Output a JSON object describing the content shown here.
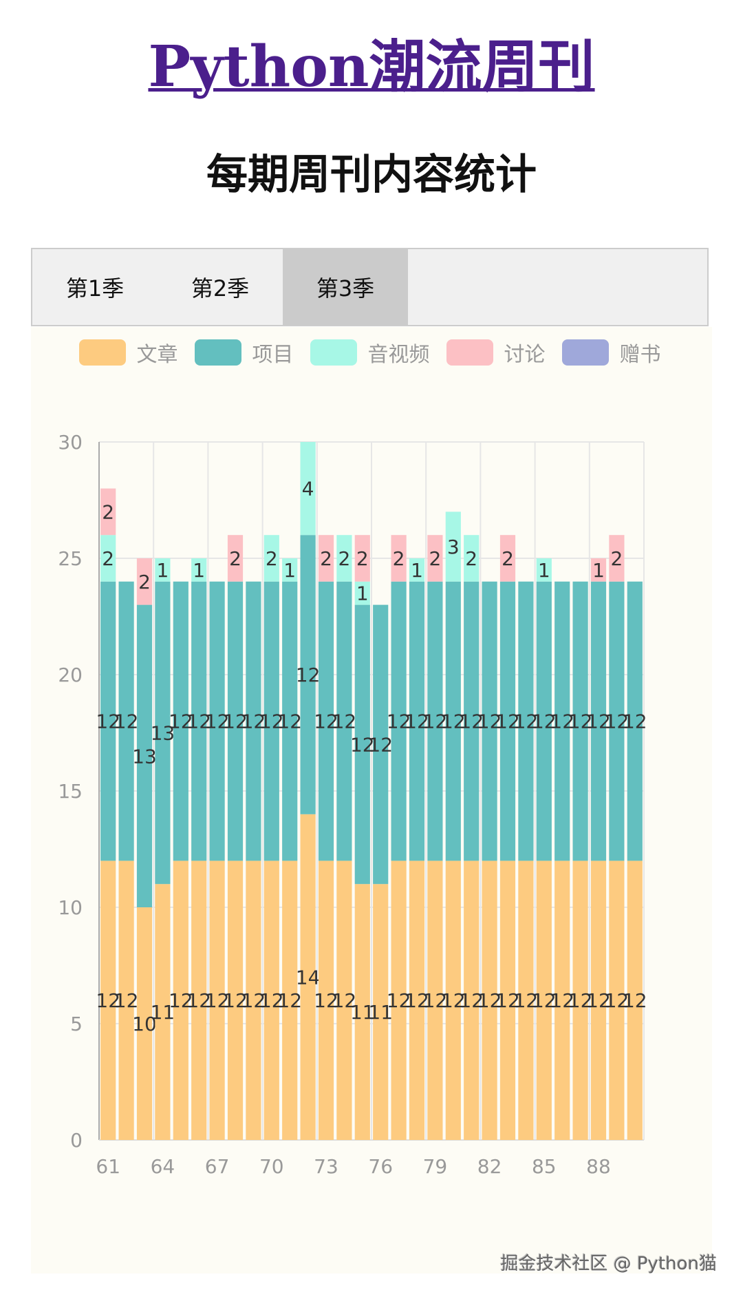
{
  "header": {
    "title": "Python潮流周刊",
    "subtitle": "每期周刊内容统计"
  },
  "tabs": [
    {
      "label": "第1季",
      "active": false
    },
    {
      "label": "第2季",
      "active": false
    },
    {
      "label": "第3季",
      "active": true
    }
  ],
  "watermark": "掘金技术社区 @ Python猫",
  "chart_data": {
    "type": "bar",
    "stacked": true,
    "legend_position": "top",
    "grid": true,
    "ylim": [
      0,
      30
    ],
    "yticks": [
      0,
      5,
      10,
      15,
      20,
      25,
      30
    ],
    "xtick_labels": [
      "61",
      "64",
      "67",
      "70",
      "73",
      "76",
      "79",
      "82",
      "85",
      "88"
    ],
    "categories": [
      61,
      62,
      63,
      64,
      65,
      66,
      67,
      68,
      69,
      70,
      71,
      72,
      73,
      74,
      75,
      76,
      77,
      78,
      79,
      80,
      81,
      82,
      83,
      84,
      85,
      86,
      87,
      88,
      89,
      90
    ],
    "series": [
      {
        "name": "文章",
        "color": "#fdcb80",
        "values": [
          12,
          12,
          10,
          11,
          12,
          12,
          12,
          12,
          12,
          12,
          12,
          14,
          12,
          12,
          11,
          11,
          12,
          12,
          12,
          12,
          12,
          12,
          12,
          12,
          12,
          12,
          12,
          12,
          12,
          12
        ]
      },
      {
        "name": "项目",
        "color": "#63bfbf",
        "values": [
          12,
          12,
          13,
          13,
          12,
          12,
          12,
          12,
          12,
          12,
          12,
          12,
          12,
          12,
          12,
          12,
          12,
          12,
          12,
          12,
          12,
          12,
          12,
          12,
          12,
          12,
          12,
          12,
          12,
          12
        ]
      },
      {
        "name": "音视频",
        "color": "#a7f7e6",
        "values": [
          2,
          0,
          0,
          1,
          0,
          1,
          0,
          0,
          0,
          2,
          1,
          4,
          0,
          2,
          1,
          0,
          0,
          1,
          0,
          3,
          2,
          0,
          0,
          0,
          1,
          0,
          0,
          0,
          0,
          0
        ]
      },
      {
        "name": "讨论",
        "color": "#fcc0c4",
        "values": [
          2,
          0,
          2,
          0,
          0,
          0,
          0,
          2,
          0,
          0,
          0,
          0,
          2,
          0,
          2,
          0,
          2,
          0,
          2,
          0,
          0,
          0,
          2,
          0,
          0,
          0,
          0,
          1,
          2,
          0
        ]
      },
      {
        "name": "赠书",
        "color": "#9fa8da",
        "values": [
          0,
          0,
          0,
          0,
          0,
          0,
          0,
          0,
          0,
          0,
          0,
          0,
          0,
          0,
          0,
          0,
          0,
          0,
          0,
          0,
          0,
          0,
          0,
          0,
          0,
          0,
          0,
          0,
          0,
          0
        ]
      }
    ]
  }
}
